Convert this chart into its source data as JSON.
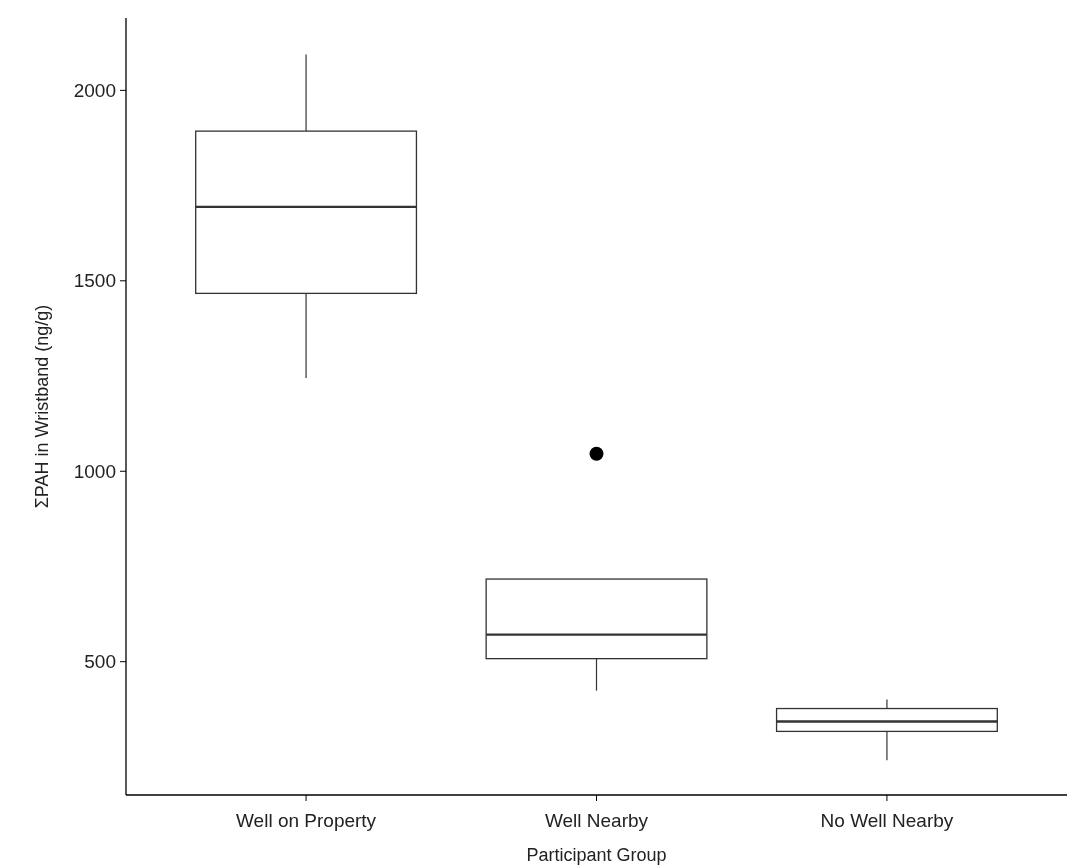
{
  "chart_data": {
    "type": "box",
    "xlabel": "Participant Group",
    "ylabel": "ΣPAH in Wristband (ng/g)",
    "categories": [
      "Well on Property",
      "Well Nearby",
      "No Well Nearby"
    ],
    "boxes": [
      {
        "low": 1245,
        "q1": 1467,
        "median": 1694,
        "q3": 1893,
        "high": 2094
      },
      {
        "low": 424,
        "q1": 508,
        "median": 571,
        "q3": 717,
        "high": 717,
        "outliers": [
          1046
        ]
      },
      {
        "low": 241,
        "q1": 317,
        "median": 343,
        "q3": 377,
        "high": 401
      }
    ],
    "color": "#333333",
    "ylim": [
      150,
      2190
    ],
    "yticks": [
      500,
      1000,
      1500,
      2000
    ],
    "grid": false
  }
}
